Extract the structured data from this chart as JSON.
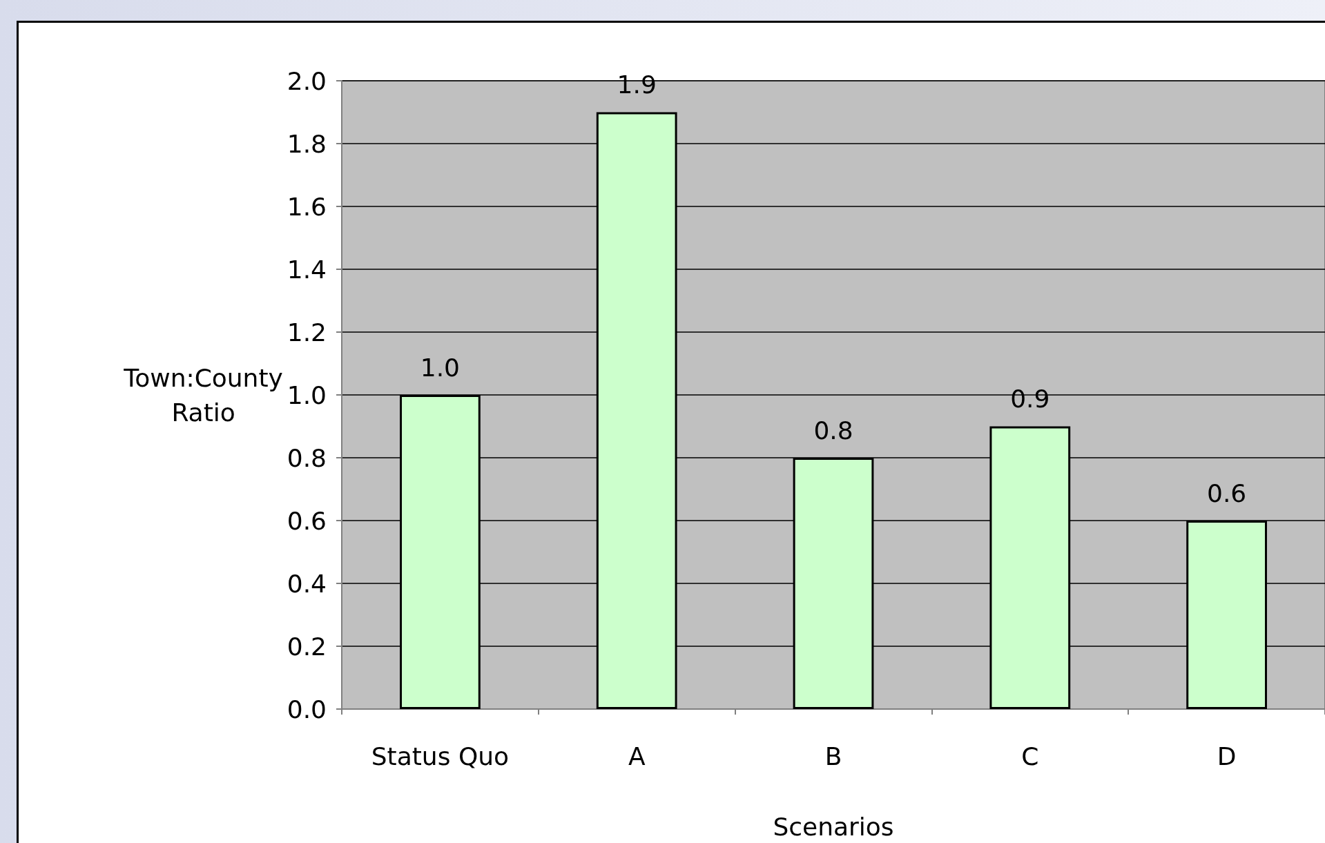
{
  "chart_data": {
    "type": "bar",
    "xlabel": "Scenarios",
    "ylabel": "Town:County Ratio",
    "categories": [
      "Status Quo",
      "A",
      "B",
      "C",
      "D"
    ],
    "values": [
      1.0,
      1.9,
      0.8,
      0.9,
      0.6
    ],
    "value_labels": [
      "1.0",
      "1.9",
      "0.8",
      "0.9",
      "0.6"
    ],
    "color": "#ccffcc",
    "ylim": [
      0,
      2
    ],
    "yticks": [
      {
        "value": 0,
        "label": "0.0"
      },
      {
        "value": 0.2,
        "label": "0.2"
      },
      {
        "value": 0.4,
        "label": "0.4"
      },
      {
        "value": 0.6,
        "label": "0.6"
      },
      {
        "value": 0.8,
        "label": "0.8"
      },
      {
        "value": 1,
        "label": "1.0"
      },
      {
        "value": 1.2,
        "label": "1.2"
      },
      {
        "value": 1.4,
        "label": "1.4"
      },
      {
        "value": 1.6,
        "label": "1.6"
      },
      {
        "value": 1.8,
        "label": "1.8"
      },
      {
        "value": 2,
        "label": "2.0"
      }
    ],
    "grid": "y"
  }
}
